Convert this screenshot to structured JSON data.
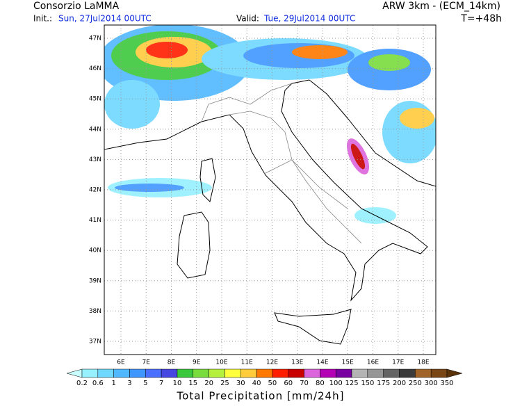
{
  "header": {
    "org": "Consorzio LaMMA",
    "init_label": "Init.:",
    "init_value": "Sun, 27Jul2014 00UTC",
    "valid_label": "Valid:",
    "valid_value": "Tue, 29Jul2014 00UTC",
    "model": "ARW 3km - (ECM_14km)",
    "lead": "T=+48h"
  },
  "map": {
    "lat_labels": [
      "47N",
      "46N",
      "45N",
      "44N",
      "43N",
      "42N",
      "41N",
      "40N",
      "39N",
      "38N",
      "37N"
    ],
    "lon_labels": [
      "6E",
      "7E",
      "8E",
      "9E",
      "10E",
      "11E",
      "12E",
      "13E",
      "14E",
      "15E",
      "16E",
      "17E",
      "18E"
    ]
  },
  "colorbar": {
    "title": "Total Precipitation [mm/24h]",
    "labels": [
      "0.2",
      "0.6",
      "1",
      "3",
      "5",
      "7",
      "10",
      "15",
      "20",
      "25",
      "30",
      "40",
      "50",
      "60",
      "70",
      "80",
      "100",
      "125",
      "150",
      "175",
      "200",
      "250",
      "300",
      "350"
    ],
    "colors": [
      "#c8ffff",
      "#96f0ff",
      "#6ed8ff",
      "#50b8ff",
      "#4096ff",
      "#4a6eff",
      "#4646e0",
      "#3cc83c",
      "#7adc3c",
      "#b4f03c",
      "#ffff3c",
      "#ffcc3c",
      "#ff7800",
      "#ff1e00",
      "#c80000",
      "#dc64dc",
      "#b400b4",
      "#7800a0",
      "#b4b4b4",
      "#969696",
      "#646464",
      "#3c3c3c",
      "#a06428",
      "#784614",
      "#5a320a"
    ]
  }
}
